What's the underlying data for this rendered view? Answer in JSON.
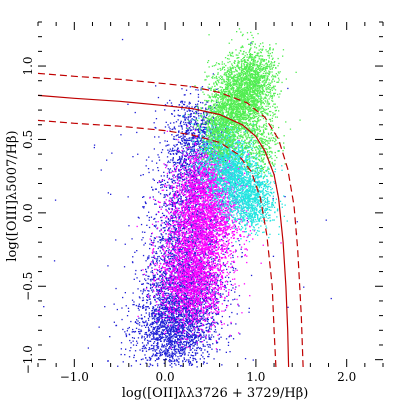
{
  "chart_data": {
    "type": "scatter",
    "title": "",
    "xlabel": "log([OII]λλ3726 + 3729/Hβ)",
    "ylabel": "log([OIII]λ5007/Hβ)",
    "xlim": [
      -1.4,
      2.4
    ],
    "ylim": [
      -1.05,
      1.3
    ],
    "x_ticks": [
      -1.0,
      0.0,
      1.0,
      2.0
    ],
    "x_tick_labels": [
      "−1.0",
      "0.0",
      "1.0",
      "2.0"
    ],
    "y_ticks": [
      -1.0,
      -0.5,
      0.0,
      0.5,
      1.0
    ],
    "y_tick_labels": [
      "−1.0",
      "−0.5",
      "0.0",
      "0.5",
      "1.0"
    ],
    "grid": false,
    "legend": "none",
    "series": [
      {
        "color": "#1f1fd6",
        "clusters": [
          {
            "cx": 0.1,
            "cy": -0.8,
            "sx": 0.22,
            "sy": 0.14,
            "n": 1700
          },
          {
            "cx": 0.2,
            "cy": -0.5,
            "sx": 0.22,
            "sy": 0.15,
            "n": 1300
          },
          {
            "cx": 0.25,
            "cy": -0.15,
            "sx": 0.22,
            "sy": 0.16,
            "n": 900
          },
          {
            "cx": 0.3,
            "cy": 0.25,
            "sx": 0.2,
            "sy": 0.17,
            "n": 900
          },
          {
            "cx": 0.35,
            "cy": 0.55,
            "sx": 0.15,
            "sy": 0.12,
            "n": 500
          },
          {
            "cx": 0.2,
            "cy": 0.0,
            "sx": 0.6,
            "sy": 0.5,
            "n": 140
          }
        ]
      },
      {
        "color": "#ff00ff",
        "clusters": [
          {
            "cx": 0.3,
            "cy": -0.45,
            "sx": 0.18,
            "sy": 0.17,
            "n": 1700
          },
          {
            "cx": 0.42,
            "cy": -0.05,
            "sx": 0.2,
            "sy": 0.17,
            "n": 1800
          },
          {
            "cx": 0.5,
            "cy": 0.22,
            "sx": 0.17,
            "sy": 0.13,
            "n": 900
          }
        ]
      },
      {
        "color": "#22e5e0",
        "clusters": [
          {
            "cx": 0.75,
            "cy": 0.28,
            "sx": 0.15,
            "sy": 0.12,
            "n": 1300
          },
          {
            "cx": 0.95,
            "cy": 0.08,
            "sx": 0.13,
            "sy": 0.1,
            "n": 900
          },
          {
            "cx": 0.6,
            "cy": 0.45,
            "sx": 0.12,
            "sy": 0.1,
            "n": 500
          }
        ]
      },
      {
        "color": "#52ee52",
        "clusters": [
          {
            "cx": 0.8,
            "cy": 0.75,
            "sx": 0.16,
            "sy": 0.13,
            "n": 1800
          },
          {
            "cx": 0.98,
            "cy": 0.92,
            "sx": 0.13,
            "sy": 0.11,
            "n": 900
          },
          {
            "cx": 0.62,
            "cy": 0.55,
            "sx": 0.12,
            "sy": 0.1,
            "n": 600
          },
          {
            "cx": 1.05,
            "cy": 0.45,
            "sx": 0.1,
            "sy": 0.1,
            "n": 300
          }
        ]
      }
    ],
    "curves": [
      {
        "style": "solid",
        "color": "#c00000",
        "x": [
          -1.4,
          -1.0,
          -0.5,
          0.0,
          0.3,
          0.6,
          0.85,
          1.0,
          1.1,
          1.2,
          1.25,
          1.3,
          1.33,
          1.35,
          1.36
        ],
        "y": [
          0.8,
          0.78,
          0.76,
          0.73,
          0.71,
          0.67,
          0.6,
          0.52,
          0.42,
          0.26,
          0.1,
          -0.2,
          -0.5,
          -0.8,
          -1.05
        ]
      },
      {
        "style": "dashed",
        "color": "#c00000",
        "x": [
          -1.4,
          -1.0,
          -0.5,
          0.0,
          0.3,
          0.6,
          0.9,
          1.1,
          1.25,
          1.35,
          1.42,
          1.46,
          1.5,
          1.52
        ],
        "y": [
          0.95,
          0.93,
          0.91,
          0.88,
          0.86,
          0.82,
          0.75,
          0.65,
          0.5,
          0.3,
          0.05,
          -0.25,
          -0.7,
          -1.05
        ]
      },
      {
        "style": "dashed",
        "color": "#c00000",
        "x": [
          -1.4,
          -1.0,
          -0.5,
          0.0,
          0.3,
          0.6,
          0.8,
          0.95,
          1.05,
          1.12,
          1.18,
          1.2,
          1.22
        ],
        "y": [
          0.63,
          0.61,
          0.59,
          0.56,
          0.53,
          0.48,
          0.4,
          0.28,
          0.1,
          -0.15,
          -0.5,
          -0.8,
          -1.05
        ]
      }
    ]
  }
}
